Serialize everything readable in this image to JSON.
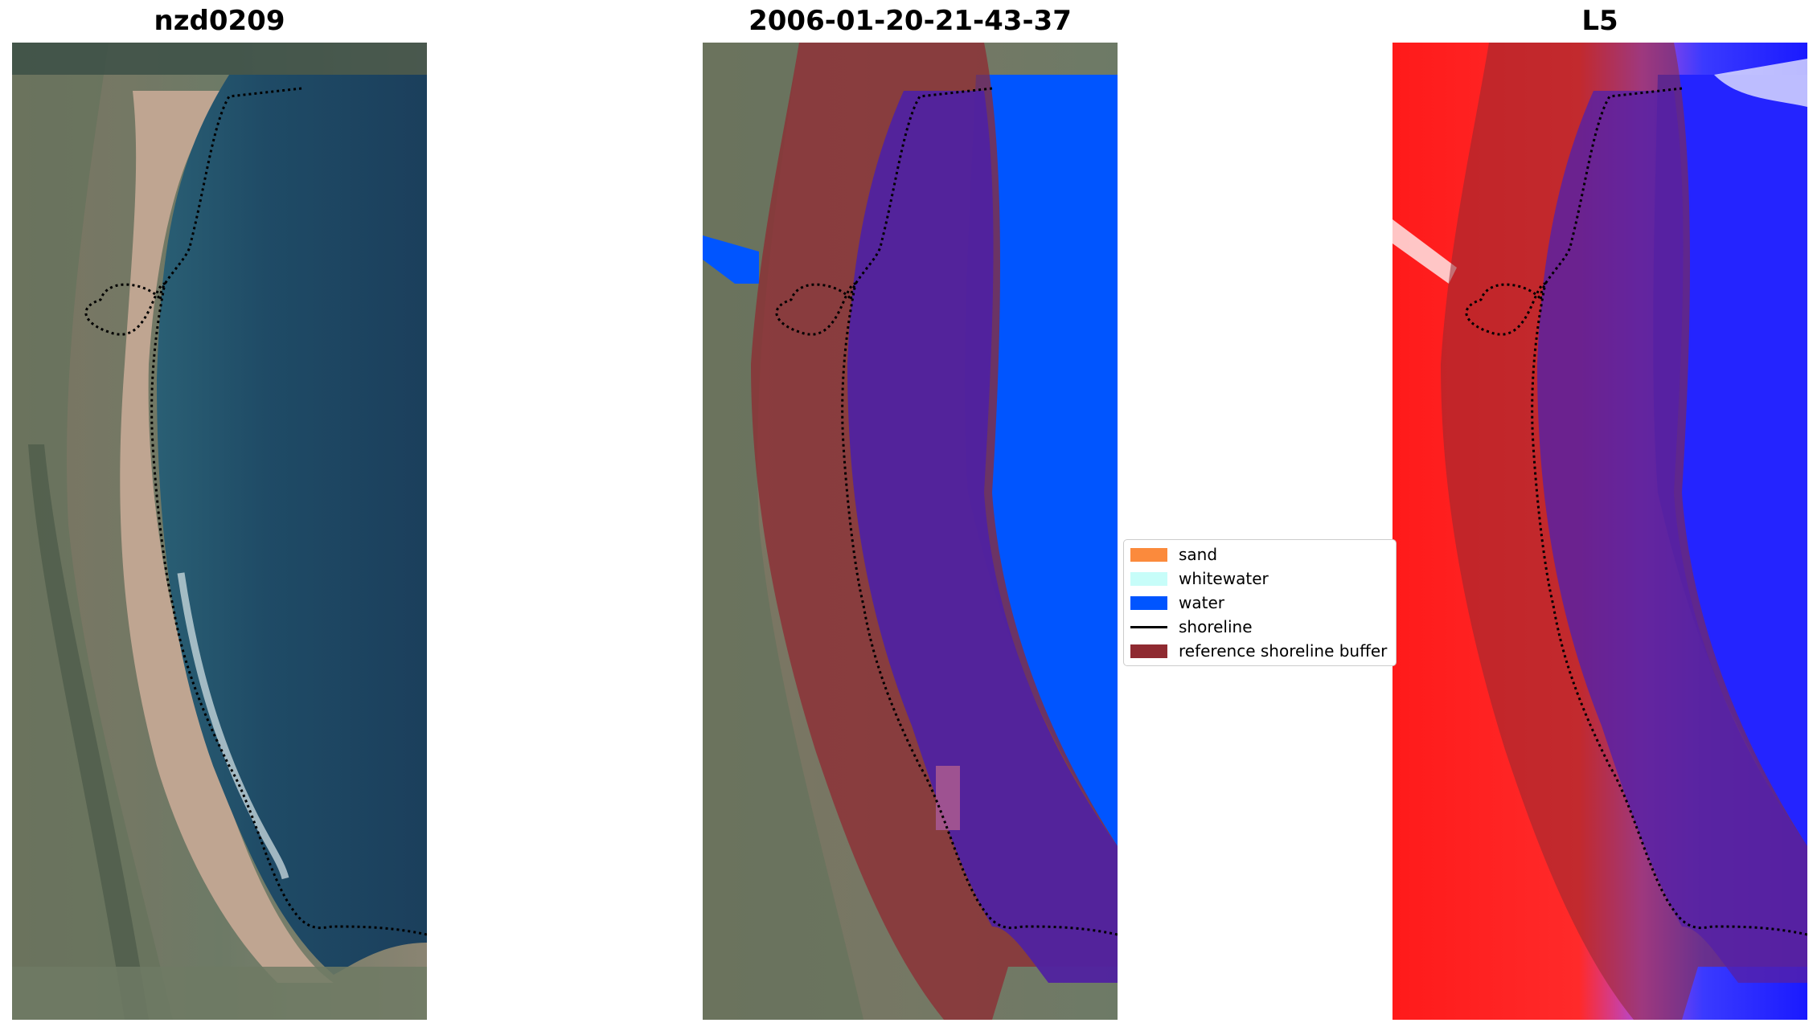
{
  "panels": [
    {
      "title": "nzd0209"
    },
    {
      "title": "2006-01-20-21-43-37"
    },
    {
      "title": "L5"
    }
  ],
  "legend": [
    {
      "label": "sand",
      "color": "#fb8a3c"
    },
    {
      "label": "whitewater",
      "color": "#c7fdf9"
    },
    {
      "label": "water",
      "color": "#0055ff"
    },
    {
      "label": "shoreline",
      "color": "#000000",
      "type": "line"
    },
    {
      "label": "reference shoreline buffer",
      "color": "#8f2a31"
    }
  ],
  "colors": {
    "sea": "#1c4360",
    "beach": "#bfa591",
    "vegetation": "#5c6e56",
    "buffer": "#8f2a31",
    "water_class": "#0055ff",
    "index_land": "#ff1a1a",
    "index_water": "#1a1aff"
  }
}
